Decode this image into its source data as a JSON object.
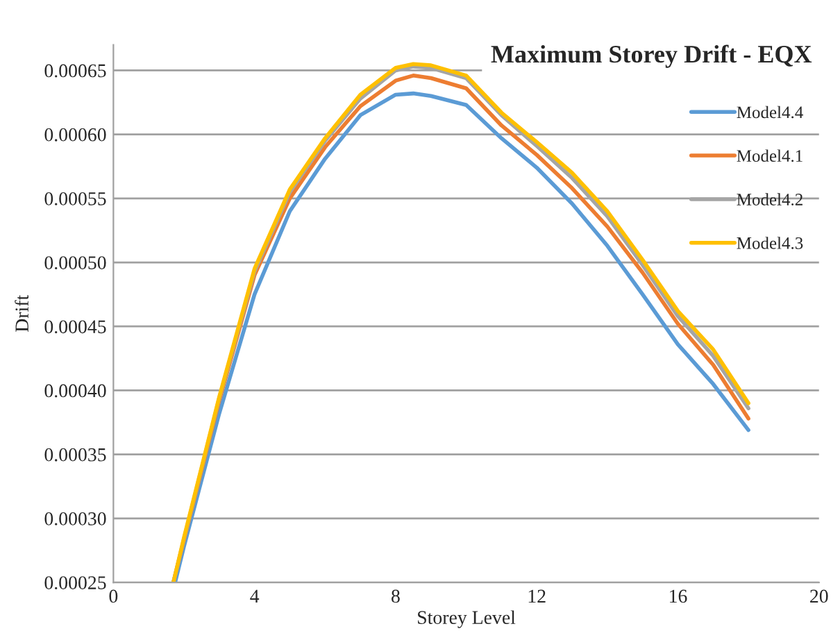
{
  "chart_data": {
    "type": "line",
    "title": "Maximum Storey Drift - EQX",
    "xlabel": "Storey Level",
    "ylabel": "Drift",
    "xlim": [
      0,
      20
    ],
    "xticks": [
      0,
      4,
      8,
      12,
      16,
      20
    ],
    "ylim": [
      0.00025,
      0.00067
    ],
    "yticks": [
      {
        "value": 0.00025,
        "label": "0.00025"
      },
      {
        "value": 0.0003,
        "label": "0.00030"
      },
      {
        "value": 0.00035,
        "label": "0.00035"
      },
      {
        "value": 0.0004,
        "label": "0.00040"
      },
      {
        "value": 0.00045,
        "label": "0.00045"
      },
      {
        "value": 0.0005,
        "label": "0.00050"
      },
      {
        "value": 0.00055,
        "label": "0.00055"
      },
      {
        "value": 0.0006,
        "label": "0.00060"
      },
      {
        "value": 0.00065,
        "label": "0.00065"
      }
    ],
    "grid": "y",
    "legend": "right",
    "marker": "none",
    "line_style": "solid",
    "series": [
      {
        "name": "Model4.4",
        "color": "#5b9bd5",
        "x": [
          1.75,
          2,
          3,
          4,
          5,
          6,
          7,
          8,
          8.5,
          9,
          10,
          11,
          12,
          13,
          14,
          15,
          16,
          17,
          18
        ],
        "values": [
          0.00025,
          0.000278,
          0.000382,
          0.000475,
          0.00054,
          0.000581,
          0.000615,
          0.000631,
          0.000632,
          0.00063,
          0.000623,
          0.000597,
          0.000574,
          0.000546,
          0.000513,
          0.000475,
          0.000436,
          0.000405,
          0.000369
        ]
      },
      {
        "name": "Model4.1",
        "color": "#ed7d31",
        "x": [
          1.7,
          2,
          3,
          4,
          5,
          6,
          7,
          8,
          8.5,
          9,
          10,
          11,
          12,
          13,
          14,
          15,
          16,
          17,
          18
        ],
        "values": [
          0.00025,
          0.000283,
          0.000392,
          0.00049,
          0.00055,
          0.00059,
          0.000622,
          0.000642,
          0.000646,
          0.000644,
          0.000636,
          0.000607,
          0.000584,
          0.000558,
          0.000528,
          0.000492,
          0.000452,
          0.00042,
          0.000378
        ]
      },
      {
        "name": "Model4.2",
        "color": "#a5a5a5",
        "x": [
          1.7,
          2,
          3,
          4,
          5,
          6,
          7,
          8,
          8.5,
          9,
          10,
          11,
          12,
          13,
          14,
          15,
          16,
          17,
          18
        ],
        "values": [
          0.00025,
          0.000284,
          0.000394,
          0.000493,
          0.000555,
          0.000595,
          0.000628,
          0.00065,
          0.000653,
          0.000652,
          0.000644,
          0.000615,
          0.000591,
          0.000566,
          0.000536,
          0.000498,
          0.000458,
          0.000427,
          0.000386
        ]
      },
      {
        "name": "Model4.3",
        "color": "#ffc000",
        "x": [
          1.7,
          2,
          3,
          4,
          5,
          6,
          7,
          8,
          8.5,
          9,
          10,
          11,
          12,
          13,
          14,
          15,
          16,
          17,
          18
        ],
        "values": [
          0.00025,
          0.000285,
          0.000395,
          0.000495,
          0.000557,
          0.000597,
          0.000631,
          0.000652,
          0.000655,
          0.000654,
          0.000646,
          0.000617,
          0.000594,
          0.00057,
          0.00054,
          0.000502,
          0.000462,
          0.000432,
          0.00039
        ]
      }
    ]
  }
}
